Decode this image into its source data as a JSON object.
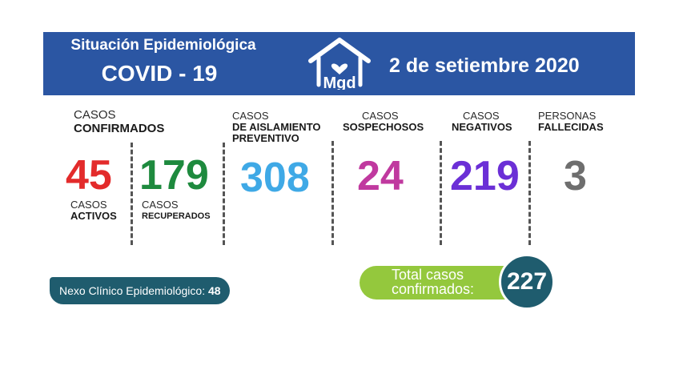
{
  "header": {
    "title_line1": "Situación Epidemiológica",
    "title_line2": "COVID - 19",
    "logo_text": "Mgd",
    "date": "2 de setiembre 2020"
  },
  "confirmed": {
    "line1": "CASOS",
    "line2": "CONFIRMADOS"
  },
  "activos": {
    "value": "45",
    "line1": "CASOS",
    "line2": "ACTIVOS",
    "color": "#e32b2b"
  },
  "recuperados": {
    "value": "179",
    "line1": "CASOS",
    "line2": "RECUPERADOS",
    "color": "#1e8a3e"
  },
  "aislamiento": {
    "value": "308",
    "line1": "CASOS",
    "line2": "DE AISLAMIENTO",
    "line3": "PREVENTIVO",
    "color": "#3fa9e6"
  },
  "sospechosos": {
    "value": "24",
    "line1": "CASOS",
    "line2": "SOSPECHOSOS",
    "color": "#c0399f"
  },
  "negativos": {
    "value": "219",
    "line1": "CASOS",
    "line2": "NEGATIVOS",
    "color": "#6b2fd6"
  },
  "fallecidas": {
    "value": "3",
    "line1": "PERSONAS",
    "line2": "FALLECIDAS",
    "color": "#6e6e6e"
  },
  "nexo": {
    "label": "Nexo Clínico Epidemiológico:",
    "value": "48"
  },
  "total": {
    "line1": "Total casos",
    "line2": "confirmados:",
    "value": "227"
  },
  "colors": {
    "header_bg": "#2b56a3",
    "teal": "#1f5c6e",
    "green_pill": "#94c83d"
  }
}
